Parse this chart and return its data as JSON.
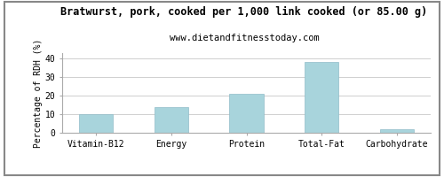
{
  "title": "Bratwurst, pork, cooked per 1,000 link cooked (or 85.00 g)",
  "subtitle": "www.dietandfitnesstoday.com",
  "categories": [
    "Vitamin-B12",
    "Energy",
    "Protein",
    "Total-Fat",
    "Carbohydrate"
  ],
  "values": [
    10,
    14,
    21,
    38,
    2
  ],
  "bar_color": "#a8d4dc",
  "ylabel": "Percentage of RDH (%)",
  "ylim": [
    0,
    43
  ],
  "yticks": [
    0,
    10,
    20,
    30,
    40
  ],
  "title_fontsize": 8.5,
  "subtitle_fontsize": 7.5,
  "ylabel_fontsize": 7,
  "tick_fontsize": 7,
  "background_color": "#ffffff",
  "grid_color": "#c8c8c8",
  "border_color": "#aaaaaa",
  "bar_width": 0.45
}
